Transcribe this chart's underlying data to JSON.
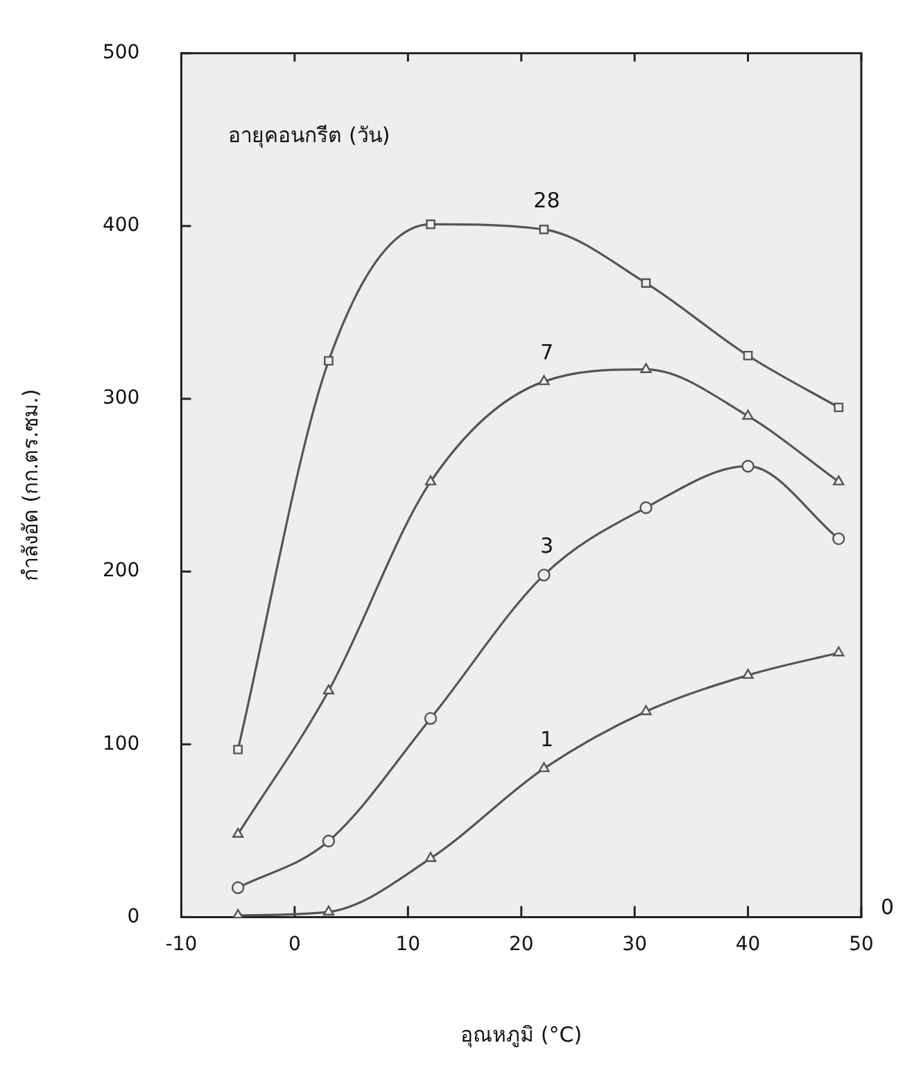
{
  "chart_data": {
    "type": "line",
    "xlabel": "อุณหภูมิ (°C)",
    "ylabel": "กำลังอัด (กก.ตร.ซม.)",
    "legend_title": "อายุคอนกรีต (วัน)",
    "x": [
      -5,
      3,
      12,
      22,
      31,
      40,
      48
    ],
    "series": [
      {
        "name": "28",
        "color": "#555555",
        "marker": "square",
        "values": [
          97,
          322,
          401,
          398,
          367,
          325,
          295
        ]
      },
      {
        "name": "7",
        "color": "#555555",
        "marker": "triangle",
        "values": [
          48,
          131,
          252,
          310,
          317,
          290,
          252
        ]
      },
      {
        "name": "3",
        "color": "#555555",
        "marker": "circle",
        "values": [
          17,
          44,
          115,
          198,
          237,
          261,
          219
        ]
      },
      {
        "name": "1",
        "color": "#555555",
        "marker": "triangle",
        "values": [
          1,
          3,
          34,
          86,
          119,
          140,
          153
        ]
      }
    ],
    "xlim": [
      -10,
      50
    ],
    "xticks": [
      -10,
      0,
      10,
      20,
      30,
      40,
      50
    ],
    "ylim": [
      0,
      500
    ],
    "yticks": [
      0,
      100,
      200,
      300,
      400,
      500
    ],
    "grid": false,
    "legend": false,
    "annotations": [
      "0"
    ]
  }
}
